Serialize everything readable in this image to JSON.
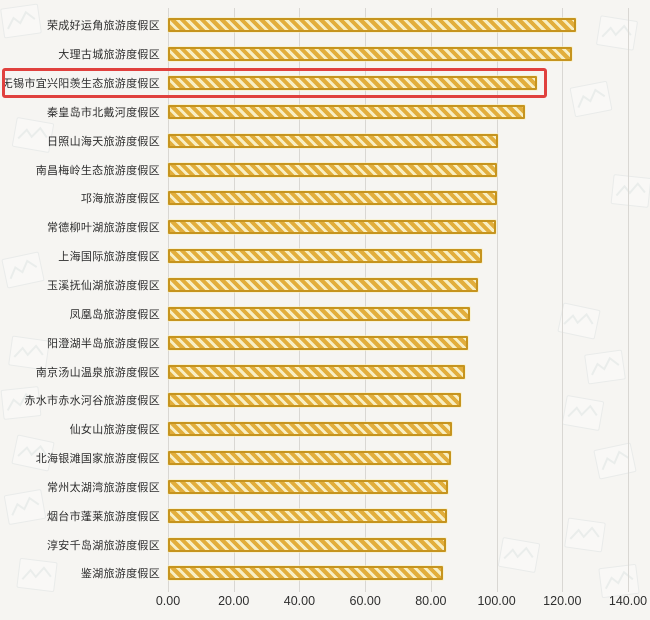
{
  "chart_data": {
    "type": "bar",
    "orientation": "horizontal",
    "title": "",
    "xlabel": "",
    "ylabel": "",
    "xlim": [
      0,
      140
    ],
    "grid": true,
    "legend": "none",
    "x_tick_labels": [
      "0.00",
      "20.00",
      "40.00",
      "60.00",
      "80.00",
      "100.00",
      "120.00",
      "140.00"
    ],
    "categories": [
      "荣成好运角旅游度假区",
      "大理古城旅游度假区",
      "无锡市宜兴阳羡生态旅游度假区",
      "秦皇岛市北戴河度假区",
      "日照山海天旅游度假区",
      "南昌梅岭生态旅游度假区",
      "邛海旅游度假区",
      "常德柳叶湖旅游度假区",
      "上海国际旅游度假区",
      "玉溪抚仙湖旅游度假区",
      "凤凰岛旅游度假区",
      "阳澄湖半岛旅游度假区",
      "南京汤山温泉旅游度假区",
      "赤水市赤水河谷旅游度假区",
      "仙女山旅游度假区",
      "北海银滩国家旅游度假区",
      "常州太湖湾旅游度假区",
      "烟台市蓬莱旅游度假区",
      "淳安千岛湖旅游度假区",
      "鉴湖旅游度假区"
    ],
    "values": [
      124.2,
      123.0,
      112.2,
      108.5,
      100.4,
      100.2,
      100.0,
      99.8,
      95.5,
      94.2,
      92.0,
      91.2,
      90.3,
      89.2,
      86.5,
      86.2,
      85.2,
      84.8,
      84.5,
      83.6
    ],
    "highlighted_index": 2,
    "highlighted_category": "无锡市宜兴阳羡生态旅游度假区"
  },
  "colors": {
    "bar_border": "#c6941f",
    "bar_stripe_dark": "#e2ae3c",
    "bar_stripe_light": "#f8efc4",
    "highlight_box": "#e0413e",
    "gridline": "#d9d7d3",
    "label_text": "#2d2d2d",
    "background": "#f6f5f2"
  }
}
